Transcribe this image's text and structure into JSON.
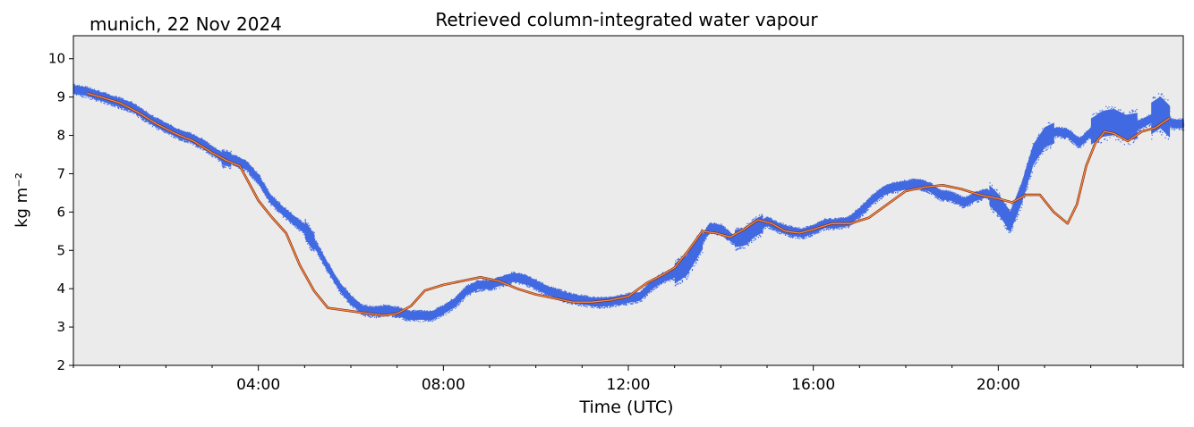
{
  "header": {
    "location_date": "munich, 22 Nov 2024",
    "title": "Retrieved column-integrated water vapour"
  },
  "chart_data": {
    "type": "scatter",
    "title": "Retrieved column-integrated water vapour",
    "subtitle": "munich, 22 Nov 2024",
    "xlabel": "Time (UTC)",
    "ylabel": "kg m⁻²",
    "xlim": [
      0,
      24
    ],
    "ylim": [
      2,
      10.6
    ],
    "x_ticks": [
      {
        "value": 4,
        "label": "04:00"
      },
      {
        "value": 8,
        "label": "08:00"
      },
      {
        "value": 12,
        "label": "12:00"
      },
      {
        "value": 16,
        "label": "16:00"
      },
      {
        "value": 20,
        "label": "20:00"
      }
    ],
    "y_ticks": [
      2,
      3,
      4,
      5,
      6,
      7,
      8,
      9,
      10
    ],
    "grid": false,
    "background": "#ebebeb",
    "colors": {
      "raw": "#4169e1",
      "smoothed": "#ff8c42",
      "smoothed_edge": "#7a2a10"
    },
    "series": [
      {
        "style": "dense scatter (raw retrievals)",
        "x": [
          0.0,
          0.25,
          0.5,
          0.75,
          1.0,
          1.25,
          1.5,
          1.75,
          2.0,
          2.25,
          2.5,
          2.75,
          3.0,
          3.25,
          3.5,
          3.75,
          4.0,
          4.25,
          4.5,
          4.75,
          5.0,
          5.25,
          5.5,
          5.75,
          6.0,
          6.25,
          6.5,
          6.75,
          7.0,
          7.25,
          7.5,
          7.75,
          8.0,
          8.25,
          8.5,
          8.75,
          9.0,
          9.25,
          9.5,
          9.75,
          10.0,
          10.25,
          10.5,
          10.75,
          11.0,
          11.25,
          11.5,
          11.75,
          12.0,
          12.25,
          12.5,
          12.75,
          13.0,
          13.25,
          13.5,
          13.75,
          14.0,
          14.25,
          14.5,
          14.75,
          15.0,
          15.25,
          15.5,
          15.75,
          16.0,
          16.25,
          16.5,
          16.75,
          17.0,
          17.25,
          17.5,
          17.75,
          18.0,
          18.25,
          18.5,
          18.75,
          19.0,
          19.25,
          19.5,
          19.75,
          20.0,
          20.25,
          20.5,
          20.75,
          21.0,
          21.25,
          21.5,
          21.75,
          22.0,
          22.25,
          22.5,
          22.75,
          23.0,
          23.25,
          23.5,
          23.75,
          24.0
        ],
        "y": [
          9.2,
          9.15,
          9.05,
          8.95,
          8.85,
          8.75,
          8.55,
          8.35,
          8.2,
          8.05,
          7.95,
          7.8,
          7.6,
          7.4,
          7.35,
          7.2,
          6.85,
          6.35,
          6.05,
          5.8,
          5.55,
          5.1,
          4.55,
          4.05,
          3.7,
          3.45,
          3.4,
          3.45,
          3.4,
          3.3,
          3.3,
          3.3,
          3.45,
          3.65,
          3.95,
          4.1,
          4.1,
          4.2,
          4.3,
          4.25,
          4.1,
          3.95,
          3.85,
          3.75,
          3.7,
          3.65,
          3.65,
          3.7,
          3.75,
          3.8,
          4.1,
          4.3,
          4.4,
          4.6,
          5.1,
          5.6,
          5.55,
          5.3,
          5.35,
          5.6,
          5.75,
          5.6,
          5.5,
          5.45,
          5.55,
          5.7,
          5.7,
          5.75,
          6.0,
          6.3,
          6.55,
          6.65,
          6.7,
          6.75,
          6.65,
          6.45,
          6.4,
          6.25,
          6.4,
          6.5,
          6.2,
          5.75,
          6.5,
          7.5,
          7.95,
          8.1,
          8.05,
          7.8,
          8.1,
          8.3,
          8.35,
          8.2,
          8.25,
          8.4,
          8.6,
          8.3,
          8.3
        ],
        "spread_kg_m2": 0.15,
        "x_units": "hours UTC"
      },
      {
        "style": "smoothed line",
        "x": [
          0.3,
          0.6,
          1.0,
          1.4,
          1.8,
          2.2,
          2.6,
          3.0,
          3.3,
          3.6,
          4.0,
          4.3,
          4.6,
          4.9,
          5.2,
          5.5,
          5.8,
          6.1,
          6.4,
          6.7,
          7.0,
          7.3,
          7.6,
          8.0,
          8.4,
          8.8,
          9.2,
          9.6,
          10.0,
          10.4,
          10.8,
          11.2,
          11.6,
          12.0,
          12.4,
          12.8,
          13.0,
          13.3,
          13.6,
          13.9,
          14.2,
          14.5,
          14.8,
          15.1,
          15.4,
          15.7,
          16.0,
          16.4,
          16.8,
          17.2,
          17.6,
          18.0,
          18.4,
          18.8,
          19.2,
          19.6,
          20.0,
          20.3,
          20.6,
          20.9,
          21.2,
          21.5,
          21.7,
          21.9,
          22.1,
          22.3,
          22.5,
          22.8,
          23.1,
          23.4,
          23.7
        ],
        "y": [
          9.1,
          9.0,
          8.85,
          8.6,
          8.3,
          8.05,
          7.85,
          7.55,
          7.35,
          7.2,
          6.3,
          5.85,
          5.45,
          4.6,
          3.95,
          3.5,
          3.45,
          3.4,
          3.35,
          3.3,
          3.35,
          3.55,
          3.95,
          4.1,
          4.2,
          4.3,
          4.2,
          4.0,
          3.85,
          3.75,
          3.65,
          3.65,
          3.7,
          3.8,
          4.15,
          4.4,
          4.55,
          5.0,
          5.5,
          5.45,
          5.35,
          5.55,
          5.8,
          5.7,
          5.5,
          5.45,
          5.55,
          5.7,
          5.7,
          5.85,
          6.2,
          6.55,
          6.65,
          6.7,
          6.6,
          6.45,
          6.35,
          6.25,
          6.45,
          6.45,
          6.0,
          5.7,
          6.2,
          7.2,
          7.8,
          8.1,
          8.05,
          7.85,
          8.1,
          8.2,
          8.45
        ]
      }
    ]
  }
}
